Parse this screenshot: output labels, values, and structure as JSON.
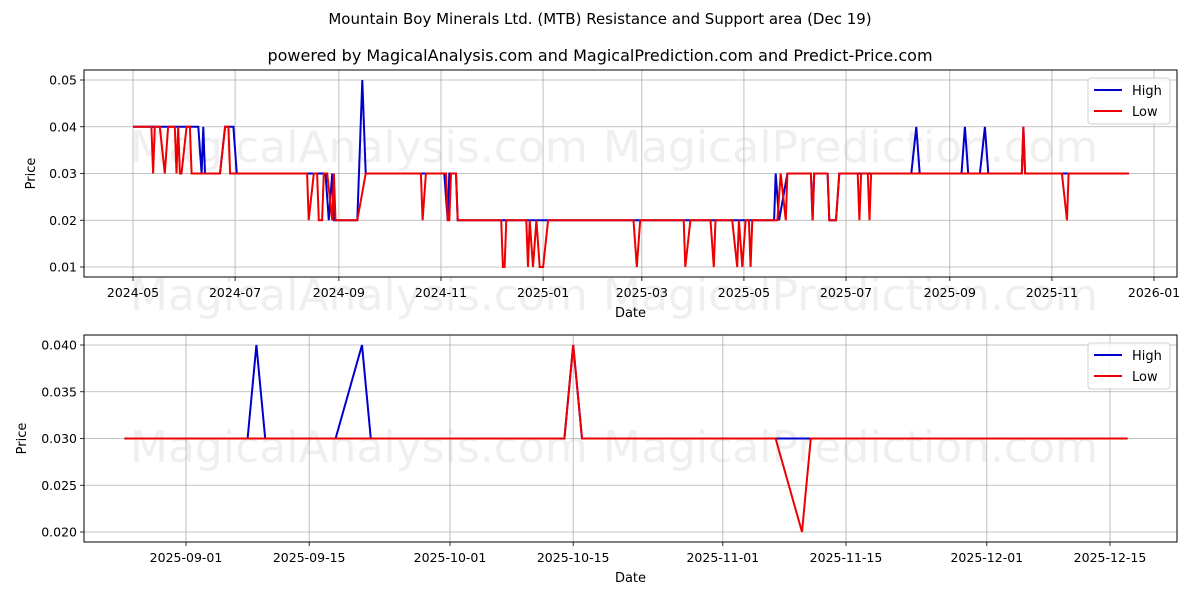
{
  "header": {
    "title": "Mountain Boy Minerals Ltd. (MTB) Resistance and Support area (Dec 19)",
    "subtitle": "powered by MagicalAnalysis.com and MagicalPrediction.com and Predict-Price.com"
  },
  "watermarks": [
    "MagicalAnalysis.com",
    "MagicalPrediction.com"
  ],
  "colors": {
    "high": "#0000cc",
    "low": "#ee0000",
    "grid": "#b0b0b0"
  },
  "chart_data": [
    {
      "type": "line",
      "title": "",
      "xlabel": "Date",
      "ylabel": "Price",
      "ylim": [
        0.008,
        0.052
      ],
      "yticks": [
        "0.01",
        "0.02",
        "0.03",
        "0.04",
        "0.05"
      ],
      "xticks": [
        "2024-05",
        "2024-07",
        "2024-09",
        "2024-11",
        "2025-01",
        "2025-03",
        "2025-05",
        "2025-07",
        "2025-09",
        "2025-11",
        "2026-01"
      ],
      "grid": true,
      "legend": {
        "position": "upper right",
        "entries": [
          "High",
          "Low"
        ]
      },
      "series": [
        {
          "name": "High",
          "points": [
            [
              "2024-05-01",
              0.04
            ],
            [
              "2024-06-09",
              0.04
            ],
            [
              "2024-06-11",
              0.03
            ],
            [
              "2024-06-12",
              0.04
            ],
            [
              "2024-06-13",
              0.03
            ],
            [
              "2024-06-22",
              0.03
            ],
            [
              "2024-06-25",
              0.04
            ],
            [
              "2024-06-30",
              0.04
            ],
            [
              "2024-07-02",
              0.03
            ],
            [
              "2024-08-13",
              0.03
            ],
            [
              "2024-08-24",
              0.03
            ],
            [
              "2024-08-26",
              0.02
            ],
            [
              "2024-08-28",
              0.03
            ],
            [
              "2024-08-29",
              0.02
            ],
            [
              "2024-09-12",
              0.02
            ],
            [
              "2024-09-15",
              0.05
            ],
            [
              "2024-09-17",
              0.03
            ],
            [
              "2024-11-03",
              0.03
            ],
            [
              "2024-11-05",
              0.02
            ],
            [
              "2024-11-06",
              0.03
            ],
            [
              "2024-11-10",
              0.03
            ],
            [
              "2024-11-11",
              0.02
            ],
            [
              "2025-05-19",
              0.02
            ],
            [
              "2025-05-20",
              0.03
            ],
            [
              "2025-05-22",
              0.02
            ],
            [
              "2025-05-27",
              0.03
            ],
            [
              "2025-06-10",
              0.03
            ],
            [
              "2025-06-11",
              0.02
            ],
            [
              "2025-06-12",
              0.03
            ],
            [
              "2025-06-20",
              0.03
            ],
            [
              "2025-06-21",
              0.02
            ],
            [
              "2025-06-25",
              0.02
            ],
            [
              "2025-06-27",
              0.03
            ],
            [
              "2025-08-09",
              0.03
            ],
            [
              "2025-08-12",
              0.04
            ],
            [
              "2025-08-14",
              0.03
            ],
            [
              "2025-09-08",
              0.03
            ],
            [
              "2025-09-10",
              0.04
            ],
            [
              "2025-09-12",
              0.03
            ],
            [
              "2025-09-19",
              0.03
            ],
            [
              "2025-09-22",
              0.04
            ],
            [
              "2025-09-24",
              0.03
            ],
            [
              "2025-10-14",
              0.03
            ],
            [
              "2025-10-15",
              0.04
            ],
            [
              "2025-10-16",
              0.03
            ],
            [
              "2025-12-17",
              0.03
            ]
          ]
        },
        {
          "name": "Low",
          "points": [
            [
              "2024-05-01",
              0.04
            ],
            [
              "2024-05-12",
              0.04
            ],
            [
              "2024-05-13",
              0.03
            ],
            [
              "2024-05-14",
              0.04
            ],
            [
              "2024-05-17",
              0.04
            ],
            [
              "2024-05-20",
              0.03
            ],
            [
              "2024-05-22",
              0.04
            ],
            [
              "2024-05-26",
              0.04
            ],
            [
              "2024-05-27",
              0.03
            ],
            [
              "2024-05-28",
              0.04
            ],
            [
              "2024-05-29",
              0.03
            ],
            [
              "2024-05-30",
              0.03
            ],
            [
              "2024-06-02",
              0.04
            ],
            [
              "2024-06-04",
              0.04
            ],
            [
              "2024-06-05",
              0.03
            ],
            [
              "2024-06-22",
              0.03
            ],
            [
              "2024-06-25",
              0.04
            ],
            [
              "2024-06-27",
              0.04
            ],
            [
              "2024-06-28",
              0.03
            ],
            [
              "2024-08-13",
              0.03
            ],
            [
              "2024-08-14",
              0.02
            ],
            [
              "2024-08-17",
              0.03
            ],
            [
              "2024-08-19",
              0.03
            ],
            [
              "2024-08-20",
              0.02
            ],
            [
              "2024-08-22",
              0.02
            ],
            [
              "2024-08-23",
              0.03
            ],
            [
              "2024-08-25",
              0.03
            ],
            [
              "2024-08-28",
              0.02
            ],
            [
              "2024-08-29",
              0.03
            ],
            [
              "2024-08-30",
              0.02
            ],
            [
              "2024-09-12",
              0.02
            ],
            [
              "2024-09-17",
              0.03
            ],
            [
              "2024-10-20",
              0.03
            ],
            [
              "2024-10-21",
              0.02
            ],
            [
              "2024-10-23",
              0.03
            ],
            [
              "2024-11-04",
              0.03
            ],
            [
              "2024-11-05",
              0.02
            ],
            [
              "2024-11-06",
              0.02
            ],
            [
              "2024-11-07",
              0.03
            ],
            [
              "2024-11-10",
              0.03
            ],
            [
              "2024-11-11",
              0.02
            ],
            [
              "2024-12-07",
              0.02
            ],
            [
              "2024-12-08",
              0.01
            ],
            [
              "2024-12-09",
              0.01
            ],
            [
              "2024-12-10",
              0.02
            ],
            [
              "2024-12-22",
              0.02
            ],
            [
              "2024-12-23",
              0.01
            ],
            [
              "2024-12-24",
              0.02
            ],
            [
              "2024-12-26",
              0.01
            ],
            [
              "2024-12-28",
              0.02
            ],
            [
              "2024-12-30",
              0.01
            ],
            [
              "2025-01-01",
              0.01
            ],
            [
              "2025-01-04",
              0.02
            ],
            [
              "2025-02-24",
              0.02
            ],
            [
              "2025-02-26",
              0.01
            ],
            [
              "2025-02-28",
              0.02
            ],
            [
              "2025-03-26",
              0.02
            ],
            [
              "2025-03-27",
              0.01
            ],
            [
              "2025-03-30",
              0.02
            ],
            [
              "2025-04-11",
              0.02
            ],
            [
              "2025-04-13",
              0.01
            ],
            [
              "2025-04-14",
              0.02
            ],
            [
              "2025-04-24",
              0.02
            ],
            [
              "2025-04-27",
              0.01
            ],
            [
              "2025-04-28",
              0.02
            ],
            [
              "2025-04-30",
              0.01
            ],
            [
              "2025-05-02",
              0.02
            ],
            [
              "2025-05-04",
              0.02
            ],
            [
              "2025-05-05",
              0.01
            ],
            [
              "2025-05-06",
              0.02
            ],
            [
              "2025-05-21",
              0.02
            ],
            [
              "2025-05-23",
              0.03
            ],
            [
              "2025-05-26",
              0.02
            ],
            [
              "2025-05-27",
              0.03
            ],
            [
              "2025-06-10",
              0.03
            ],
            [
              "2025-06-11",
              0.02
            ],
            [
              "2025-06-12",
              0.03
            ],
            [
              "2025-06-20",
              0.03
            ],
            [
              "2025-06-21",
              0.02
            ],
            [
              "2025-06-25",
              0.02
            ],
            [
              "2025-06-27",
              0.03
            ],
            [
              "2025-07-08",
              0.03
            ],
            [
              "2025-07-09",
              0.02
            ],
            [
              "2025-07-10",
              0.03
            ],
            [
              "2025-07-14",
              0.03
            ],
            [
              "2025-07-15",
              0.02
            ],
            [
              "2025-07-16",
              0.03
            ],
            [
              "2025-10-14",
              0.03
            ],
            [
              "2025-10-15",
              0.04
            ],
            [
              "2025-10-16",
              0.03
            ],
            [
              "2025-11-07",
              0.03
            ],
            [
              "2025-11-10",
              0.02
            ],
            [
              "2025-11-11",
              0.03
            ],
            [
              "2025-12-17",
              0.03
            ]
          ]
        }
      ]
    },
    {
      "type": "line",
      "title": "",
      "xlabel": "Date",
      "ylabel": "Price",
      "ylim": [
        0.0195,
        0.0405
      ],
      "yticks": [
        "0.020",
        "0.025",
        "0.030",
        "0.035",
        "0.040"
      ],
      "xticks": [
        "2025-09-01",
        "2025-09-15",
        "2025-10-01",
        "2025-10-15",
        "2025-11-01",
        "2025-11-15",
        "2025-12-01",
        "2025-12-15"
      ],
      "grid": true,
      "legend": {
        "position": "upper right",
        "entries": [
          "High",
          "Low"
        ]
      },
      "series": [
        {
          "name": "High",
          "points": [
            [
              "2025-08-25",
              0.03
            ],
            [
              "2025-09-08",
              0.03
            ],
            [
              "2025-09-09",
              0.04
            ],
            [
              "2025-09-10",
              0.03
            ],
            [
              "2025-09-18",
              0.03
            ],
            [
              "2025-09-21",
              0.04
            ],
            [
              "2025-09-22",
              0.03
            ],
            [
              "2025-10-14",
              0.03
            ],
            [
              "2025-10-15",
              0.04
            ],
            [
              "2025-10-16",
              0.03
            ],
            [
              "2025-12-17",
              0.03
            ]
          ]
        },
        {
          "name": "Low",
          "points": [
            [
              "2025-08-25",
              0.03
            ],
            [
              "2025-10-14",
              0.03
            ],
            [
              "2025-10-15",
              0.04
            ],
            [
              "2025-10-16",
              0.03
            ],
            [
              "2025-11-07",
              0.03
            ],
            [
              "2025-11-10",
              0.02
            ],
            [
              "2025-11-11",
              0.03
            ],
            [
              "2025-12-17",
              0.03
            ]
          ]
        }
      ]
    }
  ]
}
